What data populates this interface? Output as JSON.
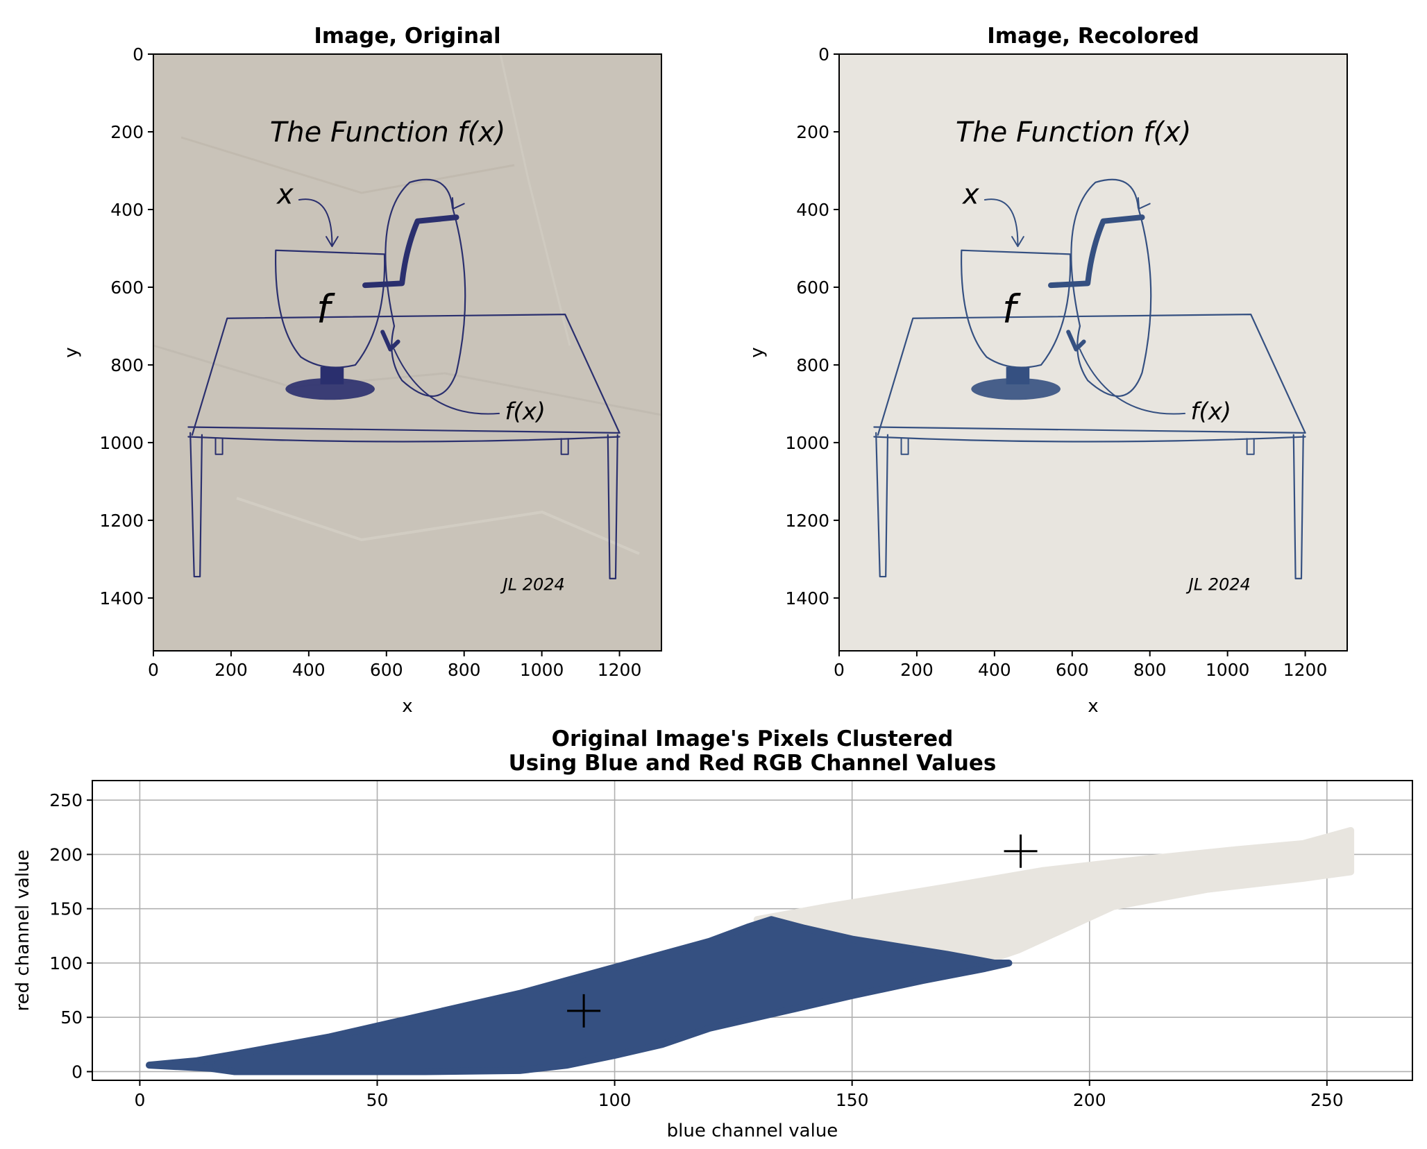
{
  "figure": {
    "panels": [
      {
        "title": "Image, Original",
        "xlabel": "x",
        "ylabel": "y",
        "xticks": [
          "0",
          "200",
          "400",
          "600",
          "800",
          "1000",
          "1200"
        ],
        "yticks": [
          "0",
          "200",
          "400",
          "600",
          "800",
          "1000",
          "1200",
          "1400"
        ],
        "paper_color": "#c9c3b9",
        "ink_color": "#2a2f6e"
      },
      {
        "title": "Image, Recolored",
        "xlabel": "x",
        "ylabel": "y",
        "xticks": [
          "0",
          "200",
          "400",
          "600",
          "800",
          "1000",
          "1200"
        ],
        "yticks": [
          "0",
          "200",
          "400",
          "600",
          "800",
          "1000",
          "1200",
          "1400"
        ],
        "paper_color": "#e8e5df",
        "ink_color": "#355081"
      }
    ],
    "drawing_text": {
      "heading": "The Function f(x)",
      "input": "x",
      "machine": "f",
      "output": "f(x)",
      "signature": "JL 2024"
    }
  },
  "chart_data": [
    {
      "type": "image",
      "title": "Image, Original",
      "xlabel": "x",
      "ylabel": "y",
      "xlim": [
        0,
        1308
      ],
      "ylim": [
        1536,
        0
      ],
      "colors": {
        "paper": "#c9c3b9",
        "ink": "#2a2f6e"
      }
    },
    {
      "type": "image",
      "title": "Image, Recolored",
      "xlabel": "x",
      "ylabel": "y",
      "xlim": [
        0,
        1308
      ],
      "ylim": [
        1536,
        0
      ],
      "colors": {
        "paper": "#e8e5df",
        "ink": "#355081"
      }
    },
    {
      "type": "scatter",
      "title": "Original Image's Pixels Clustered\nUsing Blue and Red RGB Channel Values",
      "title_lines": [
        "Original Image's Pixels Clustered",
        "Using Blue and Red RGB Channel Values"
      ],
      "xlabel": "blue channel value",
      "ylabel": "red channel value",
      "xlim": [
        -10,
        268
      ],
      "ylim": [
        -8,
        268
      ],
      "xticks": [
        0,
        50,
        100,
        150,
        200,
        250
      ],
      "yticks": [
        0,
        50,
        100,
        150,
        200,
        250
      ],
      "grid": true,
      "series": [
        {
          "color": "#e8e5df",
          "outline": [
            [
              130,
              140
            ],
            [
              145,
              152
            ],
            [
              170,
              170
            ],
            [
              190,
              185
            ],
            [
              210,
              195
            ],
            [
              230,
              204
            ],
            [
              245,
              210
            ],
            [
              255,
              222
            ],
            [
              255,
              184
            ],
            [
              245,
              178
            ],
            [
              225,
              168
            ],
            [
              205,
              152
            ],
            [
              195,
              132
            ],
            [
              185,
              112
            ],
            [
              177,
              100
            ],
            [
              168,
              103
            ],
            [
              160,
              110
            ],
            [
              150,
              120
            ],
            [
              140,
              130
            ]
          ]
        },
        {
          "color": "#355081",
          "outline": [
            [
              2,
              6
            ],
            [
              12,
              10
            ],
            [
              20,
              16
            ],
            [
              30,
              24
            ],
            [
              40,
              32
            ],
            [
              50,
              42
            ],
            [
              60,
              52
            ],
            [
              70,
              62
            ],
            [
              80,
              72
            ],
            [
              90,
              84
            ],
            [
              100,
              96
            ],
            [
              110,
              108
            ],
            [
              120,
              120
            ],
            [
              128,
              133
            ],
            [
              133,
              140
            ],
            [
              140,
              132
            ],
            [
              150,
              122
            ],
            [
              160,
              115
            ],
            [
              170,
              108
            ],
            [
              180,
              100
            ],
            [
              183,
              100
            ],
            [
              178,
              95
            ],
            [
              165,
              84
            ],
            [
              150,
              70
            ],
            [
              140,
              60
            ],
            [
              130,
              50
            ],
            [
              120,
              40
            ],
            [
              110,
              25
            ],
            [
              100,
              15
            ],
            [
              90,
              6
            ],
            [
              80,
              1
            ],
            [
              60,
              0
            ],
            [
              40,
              0
            ],
            [
              20,
              0
            ],
            [
              15,
              3
            ]
          ]
        }
      ],
      "centroids": [
        [
          93.5,
          56
        ],
        [
          185.5,
          203
        ]
      ]
    }
  ]
}
